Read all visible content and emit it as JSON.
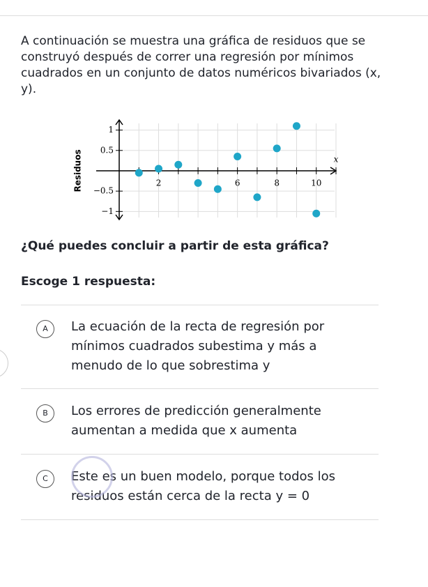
{
  "intro": "A continuación se muestra una gráfica de residuos que se construyó después de correr una regresión por mínimos cuadrados en un conjunto de datos numéricos bivariados (x, y).",
  "chart_data": {
    "type": "scatter",
    "x_label": "x",
    "y_label": "Residuos",
    "x": [
      1,
      2,
      3,
      4,
      5,
      6,
      7,
      8,
      9,
      10
    ],
    "series": [
      {
        "color": "#1fa6c8",
        "values": [
          -0.05,
          0.05,
          0.15,
          -0.3,
          -0.45,
          0.35,
          -0.65,
          0.55,
          1.1,
          -1.05
        ]
      }
    ],
    "xlim": [
      0,
      11
    ],
    "ylim": [
      -1.2,
      1.25
    ],
    "xticks": [
      2,
      4,
      6,
      8,
      10
    ],
    "x_minor_ticks": [
      1,
      3,
      5,
      7,
      9,
      11
    ],
    "yticks": [
      {
        "value": -1,
        "label": "−1"
      },
      {
        "value": -0.5,
        "label": "−0.5"
      },
      0.5,
      1
    ],
    "grid": true
  },
  "question": "¿Qué puedes concluir a partir de esta gráfica?",
  "instruction": "Escoge 1 respuesta:",
  "options": [
    {
      "letter": "A",
      "text": "La ecuación de la recta de regresión por mínimos cuadrados subestima y más a menudo de lo que sobrestima y"
    },
    {
      "letter": "B",
      "text": "Los errores de predicción generalmente aumentan a medida que x aumenta"
    },
    {
      "letter": "C",
      "text": "Este es un buen modelo, porque todos los residuos están cerca de la recta y = 0"
    }
  ]
}
